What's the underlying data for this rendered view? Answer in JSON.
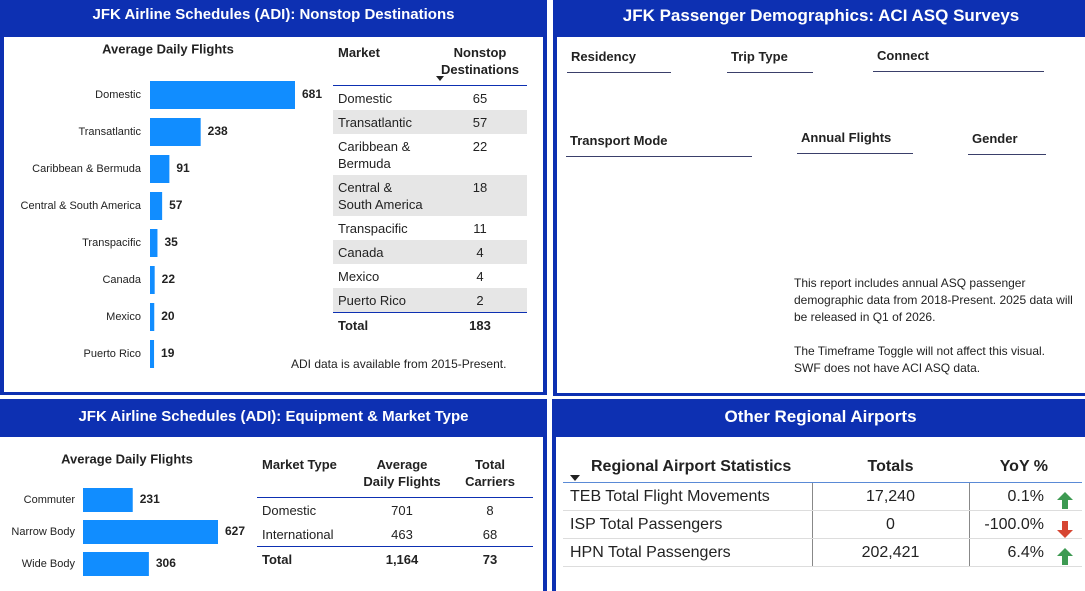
{
  "chart_data": [
    {
      "type": "bar",
      "orientation": "horizontal",
      "title": "Average Daily Flights",
      "categories": [
        "Domestic",
        "Transatlantic",
        "Caribbean & Bermuda",
        "Central & South America",
        "Transpacific",
        "Canada",
        "Mexico",
        "Puerto Rico"
      ],
      "values": [
        681,
        238,
        91,
        57,
        35,
        22,
        20,
        19
      ],
      "color": "#118dff"
    },
    {
      "type": "bar",
      "orientation": "horizontal",
      "title": "Average Daily Flights",
      "categories": [
        "Commuter",
        "Narrow Body",
        "Wide Body"
      ],
      "values": [
        231,
        627,
        306
      ],
      "color": "#118dff"
    }
  ],
  "nonstop": {
    "title": "JFK Airline Schedules (ADI): Nonstop Destinations",
    "table": {
      "columns": [
        "Market",
        "Nonstop Destinations"
      ],
      "rows": [
        [
          "Domestic",
          65
        ],
        [
          "Transatlantic",
          57
        ],
        [
          "Caribbean & Bermuda",
          22
        ],
        [
          "Central & South America",
          18
        ],
        [
          "Transpacific",
          11
        ],
        [
          "Canada",
          4
        ],
        [
          "Mexico",
          4
        ],
        [
          "Puerto Rico",
          2
        ]
      ],
      "total": [
        "Total",
        183
      ]
    },
    "note": "ADI data is available from 2015-Present."
  },
  "demographics": {
    "title": "JFK Passenger Demographics: ACI ASQ Surveys",
    "slicers": [
      "Residency",
      "Trip Type",
      "Connect",
      "Transport Mode",
      "Annual Flights",
      "Gender"
    ],
    "note": [
      [
        "This report includes annual ASQ passenger",
        "demographic data from 2018-Present. 2025 data will",
        "be released in Q1 of 2026."
      ],
      [
        "The Timeframe Toggle will not affect this visual.",
        "SWF does not have ACI ASQ data."
      ]
    ]
  },
  "equipment": {
    "title": "JFK Airline Schedules (ADI): Equipment & Market Type",
    "table": {
      "columns": [
        "Market Type",
        "Average Daily Flights",
        "Total Carriers"
      ],
      "rows": [
        [
          "Domestic",
          701,
          8
        ],
        [
          "International",
          463,
          68
        ]
      ],
      "total": [
        "Total",
        "1,164",
        73
      ]
    }
  },
  "regional": {
    "title": "Other Regional Airports",
    "table": {
      "columns": [
        "Regional Airport Statistics",
        "Totals",
        "YoY %"
      ],
      "rows": [
        [
          "TEB Total Flight Movements",
          "17,240",
          "0.1%"
        ],
        [
          "ISP Total Passengers",
          0,
          "-100.0%"
        ],
        [
          "HPN Total Passengers",
          "202,421",
          "6.4%"
        ]
      ]
    }
  }
}
